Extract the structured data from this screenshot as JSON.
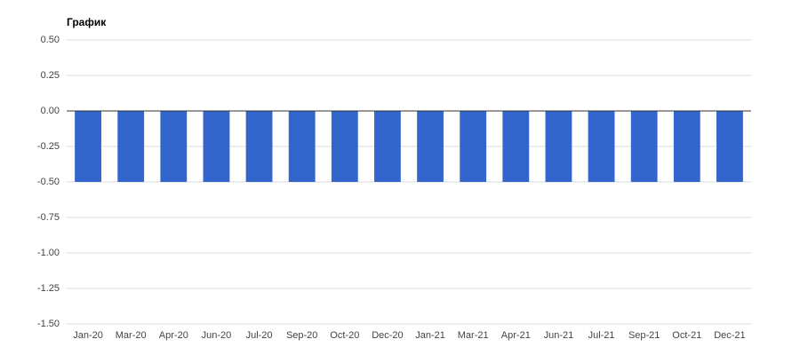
{
  "chart_data": {
    "type": "bar",
    "title": "График",
    "categories": [
      "Jan-20",
      "Mar-20",
      "Apr-20",
      "Jun-20",
      "Jul-20",
      "Sep-20",
      "Oct-20",
      "Dec-20",
      "Jan-21",
      "Mar-21",
      "Apr-21",
      "Jun-21",
      "Jul-21",
      "Sep-21",
      "Oct-21",
      "Dec-21"
    ],
    "values": [
      -0.5,
      -0.5,
      -0.5,
      -0.5,
      -0.5,
      -0.5,
      -0.5,
      -0.5,
      -0.5,
      -0.5,
      -0.5,
      -0.5,
      -0.5,
      -0.5,
      -0.5,
      -0.5
    ],
    "color": "#3366cc",
    "ylim": [
      -1.5,
      0.5
    ],
    "yticks": [
      {
        "value": 0.5,
        "label": "0.50"
      },
      0.25,
      {
        "value": 0,
        "label": "0.00"
      },
      -0.25,
      {
        "value": -0.5,
        "label": "-0.50"
      },
      -0.75,
      {
        "value": -1,
        "label": "-1.00"
      },
      -1.25,
      {
        "value": -1.5,
        "label": "-1.50"
      }
    ],
    "grid": true
  }
}
